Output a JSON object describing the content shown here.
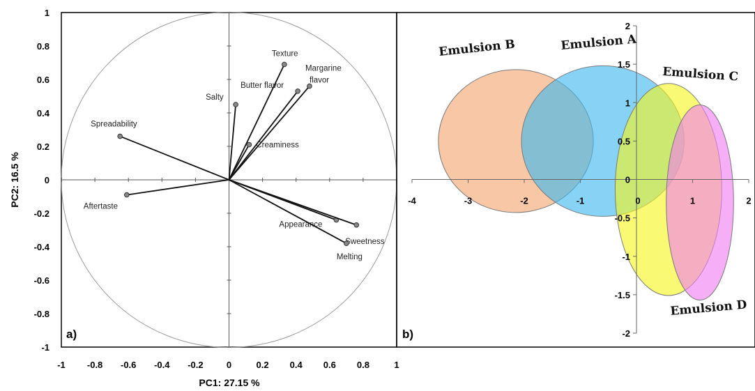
{
  "chart_data": [
    {
      "type": "scatter",
      "panel_label": "a)",
      "xlabel": "PC1: 27.15 %",
      "ylabel": "PC2: 16.5 %",
      "xlim": [
        -1,
        1
      ],
      "ylim": [
        -1,
        1
      ],
      "xticks": [
        "-1",
        "-0.8",
        "-0.6",
        "-0.4",
        "-0.2",
        "0",
        "0.2",
        "0.4",
        "0.6",
        "0.8",
        "1"
      ],
      "yticks": [
        "1",
        "0.8",
        "0.6",
        "0.4",
        "0.2",
        "0",
        "-0.2",
        "-0.4",
        "-0.6",
        "-0.8",
        "-1"
      ],
      "points": [
        {
          "label": "Texture",
          "x": 0.33,
          "y": 0.69
        },
        {
          "label": "Margarine flavor",
          "x": 0.48,
          "y": 0.56
        },
        {
          "label": "Butter flavor",
          "x": 0.41,
          "y": 0.53
        },
        {
          "label": "Salty",
          "x": 0.04,
          "y": 0.45
        },
        {
          "label": "Creaminess",
          "x": 0.12,
          "y": 0.21
        },
        {
          "label": "Spreadability",
          "x": -0.65,
          "y": 0.26
        },
        {
          "label": "Aftertaste",
          "x": -0.61,
          "y": -0.09
        },
        {
          "label": "Appearance",
          "x": 0.64,
          "y": -0.24
        },
        {
          "label": "Sweetness",
          "x": 0.76,
          "y": -0.27
        },
        {
          "label": "Melting",
          "x": 0.7,
          "y": -0.38
        }
      ]
    },
    {
      "type": "scatter",
      "panel_label": "b)",
      "xlim": [
        -4,
        2
      ],
      "ylim": [
        -2,
        2
      ],
      "xticks": [
        "-4",
        "-3",
        "-2",
        "-1",
        "0",
        "1",
        "2"
      ],
      "yticks": [
        "2",
        "1.5",
        "1",
        "0.5",
        "0",
        "-0.5",
        "-1",
        "-1.5",
        "-2"
      ],
      "ellipses": [
        {
          "name": "Emulsion B",
          "cx": -2.15,
          "cy": 0.5,
          "rx": 1.38,
          "ry": 0.93,
          "color": "#f4a46e"
        },
        {
          "name": "Emulsion A",
          "cx": -0.6,
          "cy": 0.5,
          "rx": 1.45,
          "ry": 0.98,
          "color": "#3db8ef"
        },
        {
          "name": "Emulsion C",
          "cx": 0.57,
          "cy": -0.13,
          "rx": 0.95,
          "ry": 1.38,
          "color": "#f5f51f"
        },
        {
          "name": "Emulsion D",
          "cx": 1.13,
          "cy": -0.3,
          "rx": 0.6,
          "ry": 1.27,
          "color": "#f07ef0"
        }
      ]
    }
  ]
}
